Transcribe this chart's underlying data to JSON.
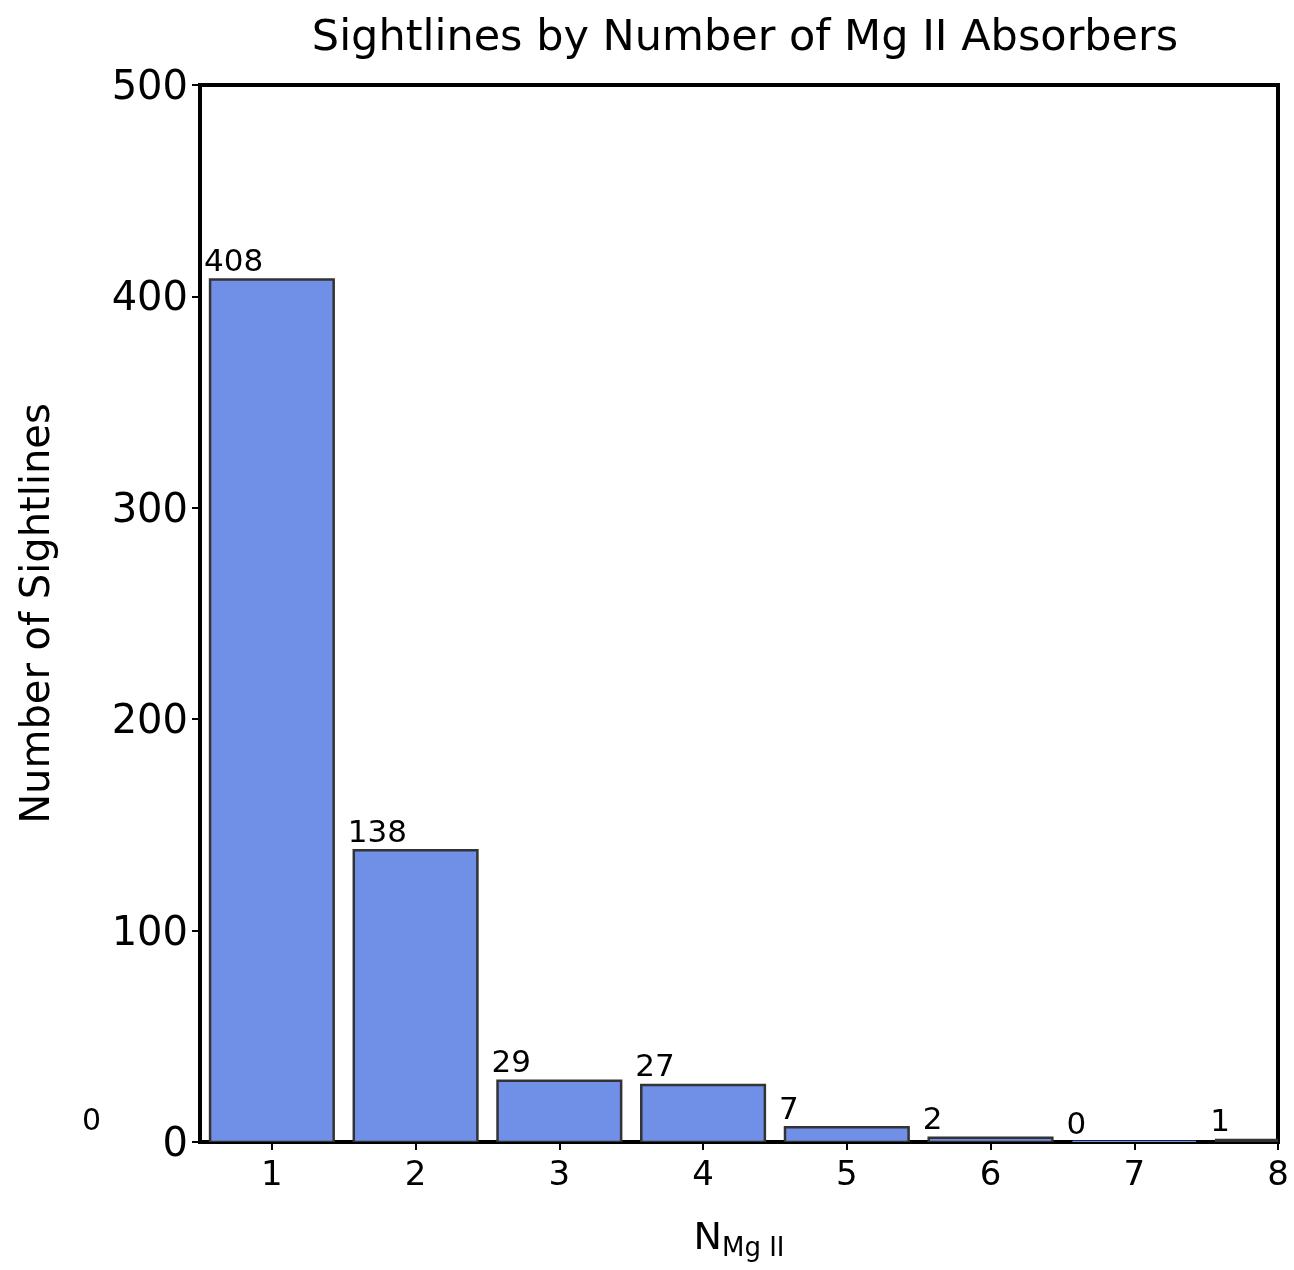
{
  "chart_data": {
    "type": "bar",
    "title": "Sightlines by Number of Mg II Absorbers",
    "xlabel": "N$_{Mg II}$",
    "ylabel": "Number of Sightlines",
    "x": [
      1,
      2,
      3,
      4,
      5,
      6,
      7,
      8
    ],
    "values": [
      408,
      138,
      29,
      27,
      7,
      2,
      0,
      1
    ],
    "color": "#7090e8",
    "xlim": [
      0.5,
      8
    ],
    "xticks": [
      1,
      2,
      3,
      4,
      5,
      6,
      7,
      8
    ],
    "ylim": [
      0,
      500
    ],
    "yticks": [
      0,
      100,
      200,
      300,
      400,
      500
    ],
    "data_labels": true,
    "grid": false,
    "annotations": [
      "0"
    ]
  }
}
